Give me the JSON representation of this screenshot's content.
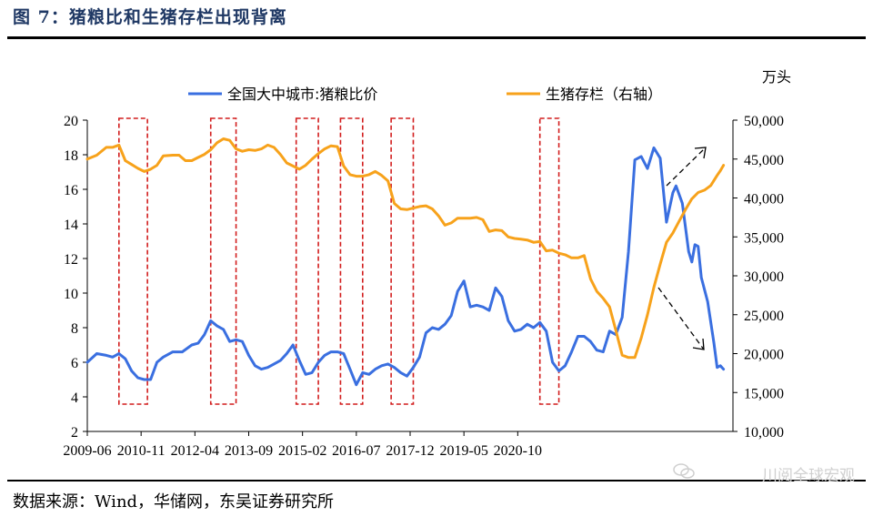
{
  "header": {
    "title": "图 7：猪粮比和生猪存栏出现背离"
  },
  "footer": {
    "source": "数据来源：Wind，华储网，东吴证券研究所",
    "watermark": "川阅全球宏观"
  },
  "chart_data": {
    "type": "line",
    "x_ticks": [
      "2009-06",
      "2010-11",
      "2012-04",
      "2013-09",
      "2015-02",
      "2016-07",
      "2017-12",
      "2019-05",
      "2020-10"
    ],
    "y_left": {
      "ticks": [
        2,
        4,
        6,
        8,
        10,
        12,
        14,
        16,
        18,
        20
      ],
      "ylim": [
        2,
        20
      ]
    },
    "y_right": {
      "ticks": [
        "10,000",
        "15,000",
        "20,000",
        "25,000",
        "30,000",
        "35,000",
        "40,000",
        "45,000",
        "50,000"
      ],
      "ylim": [
        10000,
        50000
      ],
      "unit": "万头"
    },
    "legend_position": "top",
    "series": [
      {
        "name": "全国大中城市:猪粮比价",
        "axis": "left",
        "color": "#3a6fe0",
        "values": [
          [
            0,
            6.0
          ],
          [
            3,
            6.5
          ],
          [
            6,
            6.4
          ],
          [
            8,
            6.3
          ],
          [
            10,
            6.5
          ],
          [
            12,
            6.2
          ],
          [
            14,
            5.5
          ],
          [
            16,
            5.1
          ],
          [
            18,
            5.0
          ],
          [
            20,
            5.0
          ],
          [
            22,
            6.0
          ],
          [
            24,
            6.3
          ],
          [
            27,
            6.6
          ],
          [
            30,
            6.6
          ],
          [
            33,
            7.0
          ],
          [
            35,
            7.1
          ],
          [
            37,
            7.6
          ],
          [
            39,
            8.4
          ],
          [
            41,
            8.1
          ],
          [
            43,
            7.9
          ],
          [
            45,
            7.2
          ],
          [
            47,
            7.3
          ],
          [
            49,
            7.2
          ],
          [
            51,
            6.4
          ],
          [
            53,
            5.8
          ],
          [
            55,
            5.6
          ],
          [
            57,
            5.7
          ],
          [
            59,
            5.9
          ],
          [
            61,
            6.1
          ],
          [
            63,
            6.5
          ],
          [
            65,
            7.0
          ],
          [
            67,
            6.1
          ],
          [
            69,
            5.3
          ],
          [
            71,
            5.4
          ],
          [
            73,
            6.0
          ],
          [
            75,
            6.4
          ],
          [
            77,
            6.6
          ],
          [
            79,
            6.6
          ],
          [
            81,
            6.5
          ],
          [
            83,
            5.6
          ],
          [
            85,
            4.7
          ],
          [
            87,
            5.4
          ],
          [
            89,
            5.3
          ],
          [
            91,
            5.6
          ],
          [
            93,
            5.8
          ],
          [
            95,
            5.9
          ],
          [
            97,
            5.7
          ],
          [
            99,
            5.4
          ],
          [
            101,
            5.2
          ],
          [
            103,
            5.7
          ],
          [
            105,
            6.3
          ],
          [
            107,
            7.7
          ],
          [
            109,
            8.0
          ],
          [
            111,
            7.9
          ],
          [
            113,
            8.2
          ],
          [
            115,
            8.7
          ],
          [
            117,
            10.1
          ],
          [
            119,
            10.7
          ],
          [
            121,
            9.2
          ],
          [
            123,
            9.3
          ],
          [
            125,
            9.2
          ],
          [
            127,
            9.0
          ],
          [
            129,
            10.3
          ],
          [
            131,
            9.8
          ],
          [
            133,
            8.4
          ],
          [
            135,
            7.8
          ],
          [
            137,
            7.9
          ],
          [
            139,
            8.2
          ],
          [
            141,
            8.0
          ],
          [
            143,
            8.3
          ],
          [
            145,
            7.8
          ],
          [
            147,
            6.0
          ],
          [
            149,
            5.5
          ],
          [
            151,
            5.8
          ],
          [
            153,
            6.6
          ],
          [
            155,
            7.5
          ],
          [
            157,
            7.5
          ],
          [
            159,
            7.2
          ],
          [
            161,
            6.7
          ],
          [
            163,
            6.6
          ],
          [
            165,
            7.8
          ],
          [
            167,
            7.6
          ],
          [
            169,
            8.6
          ],
          [
            171,
            12.4
          ],
          [
            173,
            17.7
          ],
          [
            175,
            17.9
          ],
          [
            177,
            17.2
          ],
          [
            179,
            18.4
          ],
          [
            181,
            17.8
          ],
          [
            183,
            14.1
          ],
          [
            185,
            15.8
          ],
          [
            186,
            16.2
          ],
          [
            188,
            15.2
          ],
          [
            190,
            12.4
          ],
          [
            191,
            11.8
          ],
          [
            192,
            12.8
          ],
          [
            193,
            12.7
          ],
          [
            194,
            10.9
          ],
          [
            196,
            9.5
          ],
          [
            198,
            7.1
          ],
          [
            199,
            5.7
          ],
          [
            200,
            5.8
          ],
          [
            201,
            5.6
          ]
        ]
      },
      {
        "name": "生猪存栏（右轴）",
        "axis": "right",
        "color": "#f7a21b",
        "values": [
          [
            0,
            45000
          ],
          [
            3,
            45500
          ],
          [
            6,
            46500
          ],
          [
            8,
            46500
          ],
          [
            10,
            46800
          ],
          [
            12,
            44800
          ],
          [
            14,
            44300
          ],
          [
            16,
            43800
          ],
          [
            18,
            43400
          ],
          [
            20,
            43700
          ],
          [
            22,
            44200
          ],
          [
            24,
            45400
          ],
          [
            27,
            45500
          ],
          [
            29,
            45500
          ],
          [
            31,
            44800
          ],
          [
            33,
            44800
          ],
          [
            35,
            45200
          ],
          [
            37,
            45600
          ],
          [
            39,
            46200
          ],
          [
            41,
            47100
          ],
          [
            43,
            47600
          ],
          [
            45,
            47400
          ],
          [
            47,
            46300
          ],
          [
            49,
            46000
          ],
          [
            51,
            46200
          ],
          [
            53,
            46100
          ],
          [
            55,
            46300
          ],
          [
            57,
            46800
          ],
          [
            59,
            46500
          ],
          [
            61,
            45600
          ],
          [
            63,
            44500
          ],
          [
            65,
            44100
          ],
          [
            67,
            43700
          ],
          [
            69,
            44200
          ],
          [
            71,
            45000
          ],
          [
            73,
            45700
          ],
          [
            75,
            46300
          ],
          [
            77,
            46700
          ],
          [
            79,
            46600
          ],
          [
            81,
            44100
          ],
          [
            83,
            43000
          ],
          [
            85,
            42800
          ],
          [
            87,
            42800
          ],
          [
            89,
            43000
          ],
          [
            91,
            43400
          ],
          [
            93,
            42900
          ],
          [
            95,
            42200
          ],
          [
            97,
            39300
          ],
          [
            99,
            38600
          ],
          [
            101,
            38500
          ],
          [
            103,
            38700
          ],
          [
            105,
            38900
          ],
          [
            107,
            39000
          ],
          [
            109,
            38600
          ],
          [
            111,
            37700
          ],
          [
            113,
            36500
          ],
          [
            115,
            36800
          ],
          [
            117,
            37400
          ],
          [
            119,
            37400
          ],
          [
            121,
            37400
          ],
          [
            123,
            37500
          ],
          [
            125,
            37200
          ],
          [
            127,
            35700
          ],
          [
            129,
            35900
          ],
          [
            131,
            35800
          ],
          [
            133,
            35000
          ],
          [
            135,
            34800
          ],
          [
            137,
            34700
          ],
          [
            139,
            34600
          ],
          [
            141,
            34300
          ],
          [
            143,
            34400
          ],
          [
            145,
            33200
          ],
          [
            147,
            33300
          ],
          [
            149,
            32900
          ],
          [
            151,
            32700
          ],
          [
            153,
            32300
          ],
          [
            155,
            32300
          ],
          [
            157,
            32600
          ],
          [
            159,
            29600
          ],
          [
            161,
            28000
          ],
          [
            163,
            27100
          ],
          [
            165,
            26000
          ],
          [
            167,
            23000
          ],
          [
            169,
            19800
          ],
          [
            171,
            19500
          ],
          [
            173,
            19500
          ],
          [
            175,
            22000
          ],
          [
            177,
            25000
          ],
          [
            179,
            28500
          ],
          [
            181,
            31500
          ],
          [
            183,
            34300
          ],
          [
            185,
            35500
          ],
          [
            187,
            37000
          ],
          [
            189,
            38500
          ],
          [
            191,
            39900
          ],
          [
            193,
            40700
          ],
          [
            195,
            41000
          ],
          [
            197,
            41600
          ],
          [
            199,
            42900
          ],
          [
            200,
            43500
          ],
          [
            201,
            44200
          ]
        ]
      }
    ],
    "x_index_range": [
      0,
      204
    ],
    "highlight_regions": [
      [
        10,
        19
      ],
      [
        39,
        47
      ],
      [
        66,
        73
      ],
      [
        80,
        87
      ],
      [
        96,
        103
      ],
      [
        143,
        149
      ]
    ]
  }
}
